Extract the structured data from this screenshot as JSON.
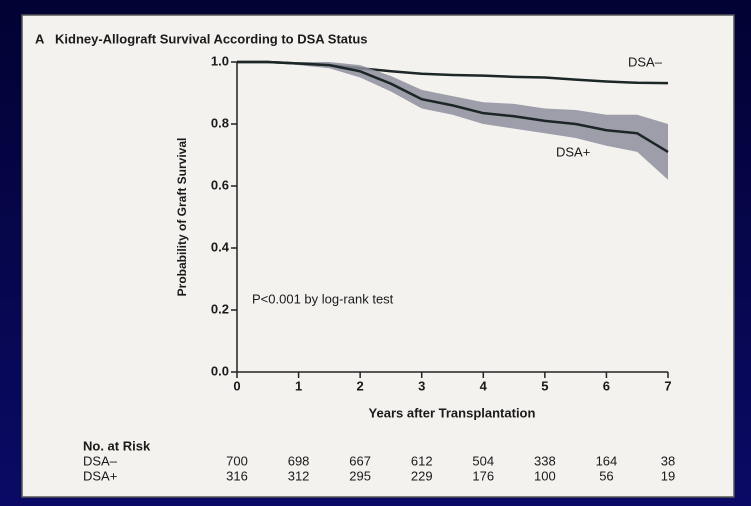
{
  "chart_data": {
    "type": "survival",
    "panel": "A",
    "title": "Kidney-Allograft Survival According to DSA Status",
    "xlabel": "Years after Transplantation",
    "ylabel": "Probability of Graft Survival",
    "annotation": "P<0.001 by log-rank test",
    "x": [
      0,
      0.5,
      1,
      1.5,
      2,
      2.5,
      3,
      3.5,
      4,
      4.5,
      5,
      5.5,
      6,
      6.5,
      7
    ],
    "series": [
      {
        "name": "DSA–",
        "color": "#1c2626",
        "values": [
          1.0,
          1.0,
          0.995,
          0.99,
          0.98,
          0.97,
          0.962,
          0.958,
          0.956,
          0.952,
          0.95,
          0.943,
          0.937,
          0.933,
          0.932
        ]
      },
      {
        "name": "DSA+",
        "color": "#1c2626",
        "band_color": "#8e8e9e",
        "values": [
          1.0,
          1.0,
          0.995,
          0.99,
          0.97,
          0.93,
          0.88,
          0.86,
          0.835,
          0.825,
          0.81,
          0.8,
          0.78,
          0.77,
          0.71
        ],
        "ci_lower": [
          1.0,
          1.0,
          0.99,
          0.98,
          0.95,
          0.905,
          0.85,
          0.83,
          0.8,
          0.785,
          0.77,
          0.755,
          0.73,
          0.71,
          0.62
        ],
        "ci_upper": [
          1.0,
          1.0,
          1.0,
          1.0,
          0.99,
          0.955,
          0.91,
          0.89,
          0.87,
          0.865,
          0.85,
          0.845,
          0.83,
          0.83,
          0.8
        ]
      }
    ],
    "xlim": [
      0,
      7
    ],
    "xticks": [
      0,
      1,
      2,
      3,
      4,
      5,
      6,
      7
    ],
    "ylim": [
      0,
      1
    ],
    "yticks": [
      {
        "value": 0,
        "label": "0.0"
      },
      0.2,
      0.4,
      0.6,
      0.8,
      {
        "value": 1,
        "label": "1.0"
      }
    ],
    "risk_table": {
      "title": "No. at Risk",
      "rows": [
        {
          "label": "DSA–",
          "values": [
            700,
            698,
            667,
            612,
            504,
            338,
            164,
            38
          ]
        },
        {
          "label": "DSA+",
          "values": [
            316,
            312,
            295,
            229,
            176,
            100,
            56,
            19
          ]
        }
      ]
    }
  }
}
